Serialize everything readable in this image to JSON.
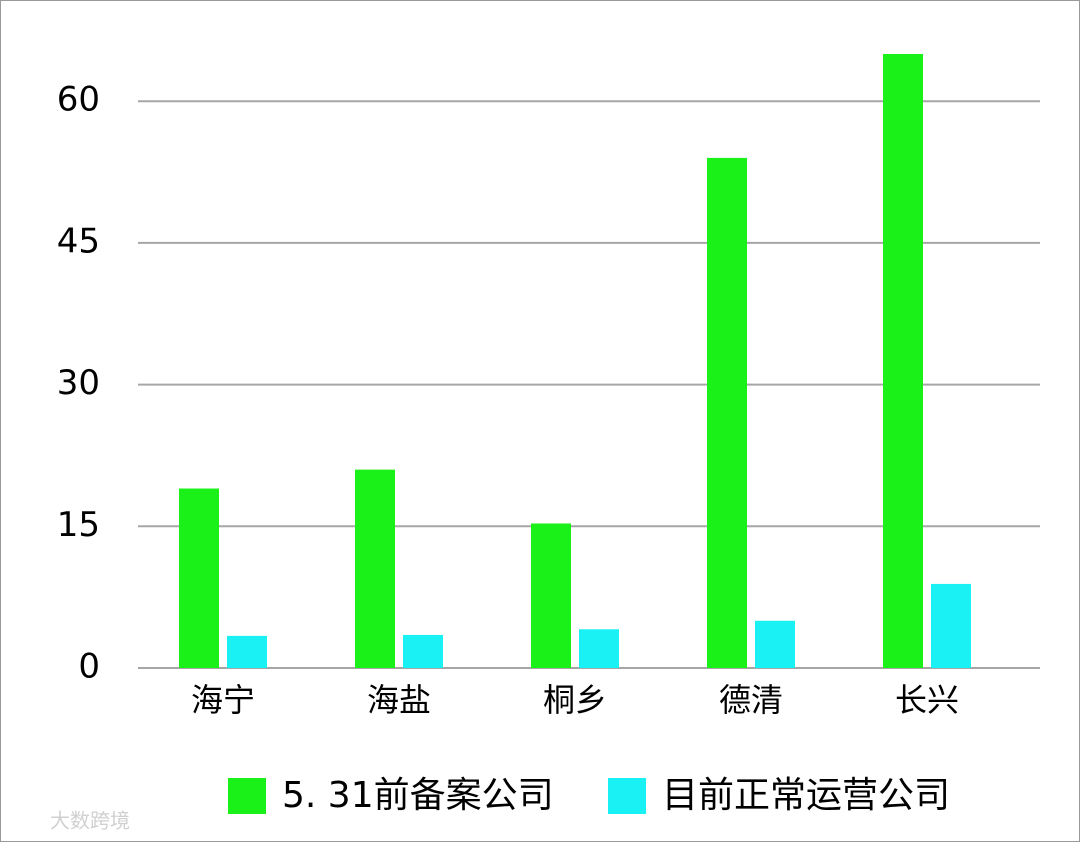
{
  "chart_data": {
    "type": "bar",
    "categories": [
      "海宁",
      "海盐",
      "桐乡",
      "德清",
      "长兴"
    ],
    "series": [
      {
        "name": "5. 31前备案公司",
        "color": "#19f119",
        "values": [
          19,
          21,
          15.3,
          54,
          65
        ]
      },
      {
        "name": "目前正常运营公司",
        "color": "#19f1f5",
        "values": [
          3.4,
          3.5,
          4.1,
          5,
          8.9
        ]
      }
    ],
    "ylim": [
      0,
      65
    ],
    "yticks": [
      0,
      15,
      30,
      45,
      60
    ],
    "grid": true,
    "watermark": "大数跨境"
  }
}
